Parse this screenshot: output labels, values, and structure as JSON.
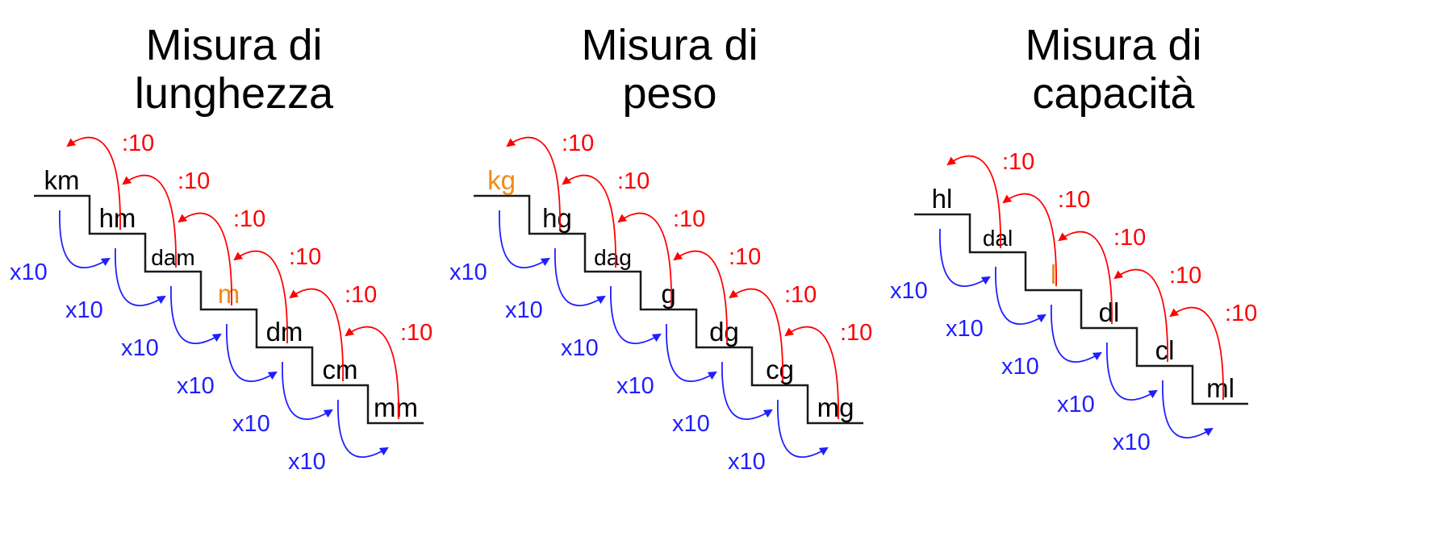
{
  "colors": {
    "step_line": "#1a1a1a",
    "divide_arrow": "#ff0000",
    "multiply_arrow": "#1f1fff",
    "base_unit": "#f28a1a",
    "unit_text": "#000000"
  },
  "divide_label": ":10",
  "multiply_label": "x10",
  "panels": [
    {
      "title_line1": "Misura di",
      "title_line2": "lunghezza",
      "units": [
        {
          "label": "km",
          "base": false
        },
        {
          "label": "hm",
          "base": false
        },
        {
          "label": "dam",
          "base": false
        },
        {
          "label": "m",
          "base": true
        },
        {
          "label": "dm",
          "base": false
        },
        {
          "label": "cm",
          "base": false
        },
        {
          "label": "mm",
          "base": false
        }
      ]
    },
    {
      "title_line1": "Misura di",
      "title_line2": "peso",
      "units": [
        {
          "label": "kg",
          "base": true
        },
        {
          "label": "hg",
          "base": false
        },
        {
          "label": "dag",
          "base": false
        },
        {
          "label": "g",
          "base": false
        },
        {
          "label": "dg",
          "base": false
        },
        {
          "label": "cg",
          "base": false
        },
        {
          "label": "mg",
          "base": false
        }
      ]
    },
    {
      "title_line1": "Misura di",
      "title_line2": "capacità",
      "units": [
        {
          "label": "hl",
          "base": false
        },
        {
          "label": "dal",
          "base": false
        },
        {
          "label": "l",
          "base": true
        },
        {
          "label": "dl",
          "base": false
        },
        {
          "label": "cl",
          "base": false
        },
        {
          "label": "ml",
          "base": false
        }
      ]
    }
  ]
}
